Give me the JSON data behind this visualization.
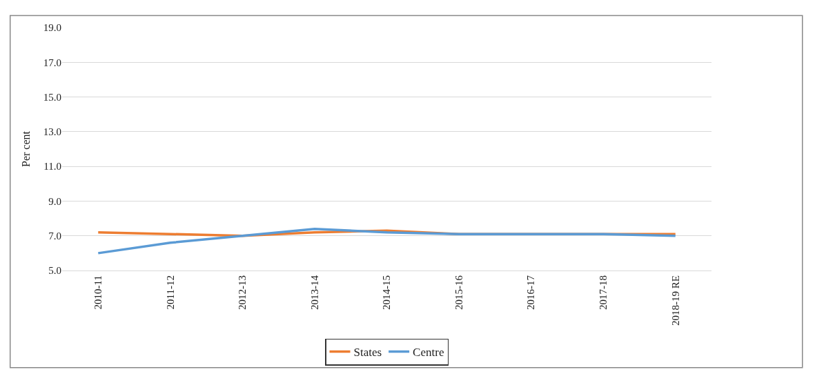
{
  "chart_data": {
    "type": "line",
    "ylabel": "Per cent",
    "categories": [
      "2010-11",
      "2011-12",
      "2012-13",
      "2013-14",
      "2014-15",
      "2015-16",
      "2016-17",
      "2017-18",
      "2018-19 RE"
    ],
    "series": [
      {
        "name": "Centre",
        "color": "#5b9bd5",
        "values": [
          6.0,
          6.6,
          7.0,
          7.4,
          7.2,
          7.1,
          7.1,
          7.1,
          7.0
        ]
      },
      {
        "name": "States",
        "color": "#ed7d31",
        "values": [
          7.2,
          7.1,
          7.0,
          7.2,
          7.3,
          7.1,
          7.1,
          7.1,
          7.1
        ]
      }
    ],
    "ylim": [
      5.0,
      19.0
    ],
    "yticks": [
      {
        "value": 5,
        "label": "5.0"
      },
      {
        "value": 7,
        "label": "7.0"
      },
      {
        "value": 9,
        "label": "9.0"
      },
      {
        "value": 11,
        "label": "11.0"
      },
      {
        "value": 13,
        "label": "13.0"
      },
      {
        "value": 15,
        "label": "15.0"
      },
      {
        "value": 17,
        "label": "17.0"
      },
      {
        "value": 19,
        "label": "19.0"
      }
    ],
    "grid": "y",
    "legend": "bottom",
    "marker": "none",
    "line_style": "solid"
  }
}
